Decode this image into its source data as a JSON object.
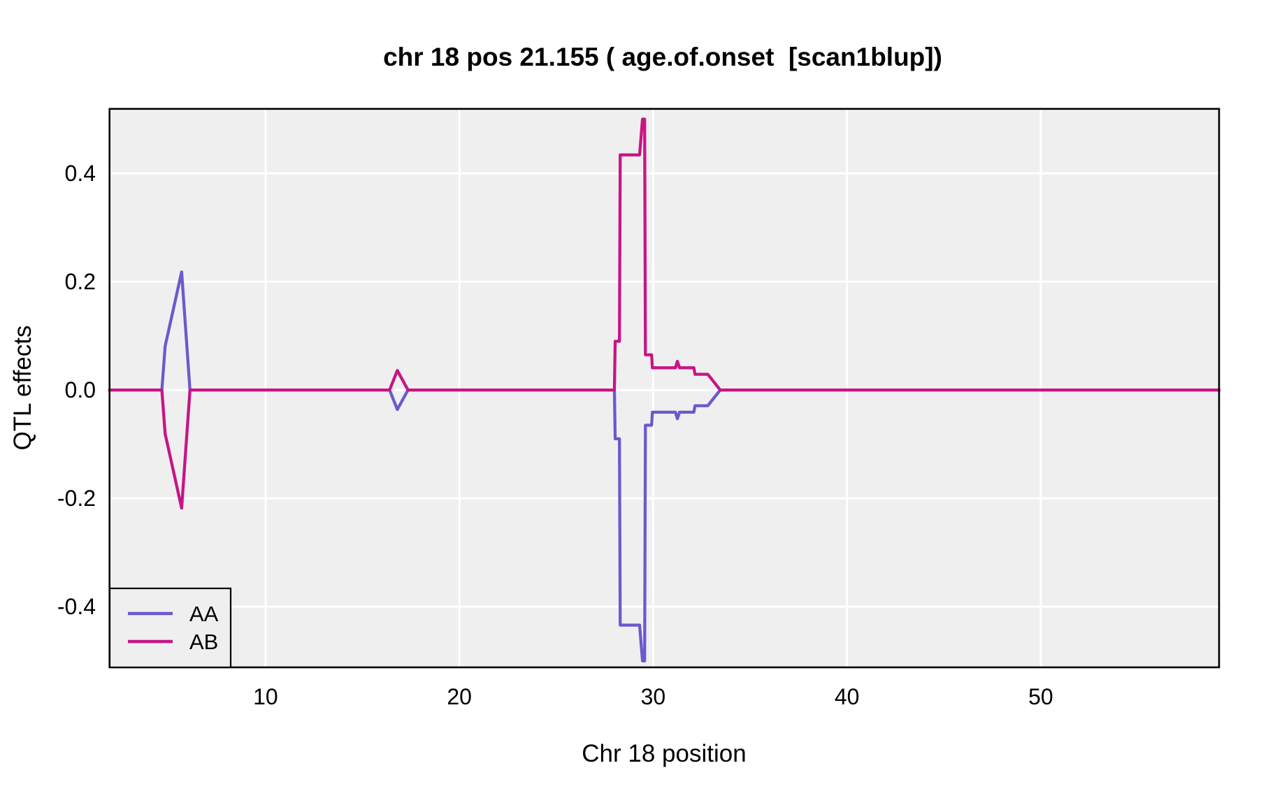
{
  "chart_data": {
    "type": "line",
    "title": "chr 18 pos 21.155 ( age.of.onset  [scan1blup])",
    "xlabel": "Chr 18 position",
    "ylabel": "QTL effects",
    "xlim": [
      1.95,
      59.2
    ],
    "ylim": [
      -0.512,
      0.519
    ],
    "x_ticks": [
      10,
      20,
      30,
      40,
      50
    ],
    "y_ticks": [
      -0.4,
      -0.2,
      0.0,
      0.2,
      0.4
    ],
    "y_tick_labels": [
      "-0.4",
      "-0.2",
      "0.0",
      "0.2",
      "0.4"
    ],
    "x_tick_labels": [
      "10",
      "20",
      "30",
      "40",
      "50"
    ],
    "grid": true,
    "panel_background": "#EFEFEF",
    "grid_color": "#FFFFFF",
    "border_color": "#000000",
    "legend_position": "bottom-left",
    "series": [
      {
        "name": "AA",
        "color": "#6A5ACD",
        "points": [
          [
            1.95,
            0
          ],
          [
            4.65,
            0
          ],
          [
            4.82,
            0.081
          ],
          [
            5.67,
            0.218
          ],
          [
            6.1,
            0
          ],
          [
            16.4,
            0
          ],
          [
            16.8,
            -0.036
          ],
          [
            17.35,
            0
          ],
          [
            28.0,
            0
          ],
          [
            28.04,
            -0.09
          ],
          [
            28.26,
            -0.09
          ],
          [
            28.3,
            -0.434
          ],
          [
            29.3,
            -0.434
          ],
          [
            29.45,
            -0.5
          ],
          [
            29.56,
            -0.5
          ],
          [
            29.6,
            -0.065
          ],
          [
            29.92,
            -0.065
          ],
          [
            29.96,
            -0.041
          ],
          [
            31.15,
            -0.041
          ],
          [
            31.25,
            -0.053
          ],
          [
            31.36,
            -0.041
          ],
          [
            32.1,
            -0.041
          ],
          [
            32.16,
            -0.029
          ],
          [
            32.82,
            -0.029
          ],
          [
            33.46,
            0
          ],
          [
            59.2,
            0
          ]
        ]
      },
      {
        "name": "AB",
        "color": "#C71585",
        "points": [
          [
            1.95,
            0
          ],
          [
            4.65,
            0
          ],
          [
            4.82,
            -0.081
          ],
          [
            5.67,
            -0.218
          ],
          [
            6.1,
            0
          ],
          [
            16.4,
            0
          ],
          [
            16.8,
            0.036
          ],
          [
            17.35,
            0
          ],
          [
            28.0,
            0
          ],
          [
            28.04,
            0.09
          ],
          [
            28.26,
            0.09
          ],
          [
            28.3,
            0.434
          ],
          [
            29.3,
            0.434
          ],
          [
            29.45,
            0.5
          ],
          [
            29.56,
            0.5
          ],
          [
            29.6,
            0.065
          ],
          [
            29.92,
            0.065
          ],
          [
            29.96,
            0.041
          ],
          [
            31.15,
            0.041
          ],
          [
            31.25,
            0.053
          ],
          [
            31.36,
            0.041
          ],
          [
            32.1,
            0.041
          ],
          [
            32.16,
            0.029
          ],
          [
            32.82,
            0.029
          ],
          [
            33.46,
            0
          ],
          [
            59.2,
            0
          ]
        ]
      }
    ]
  }
}
